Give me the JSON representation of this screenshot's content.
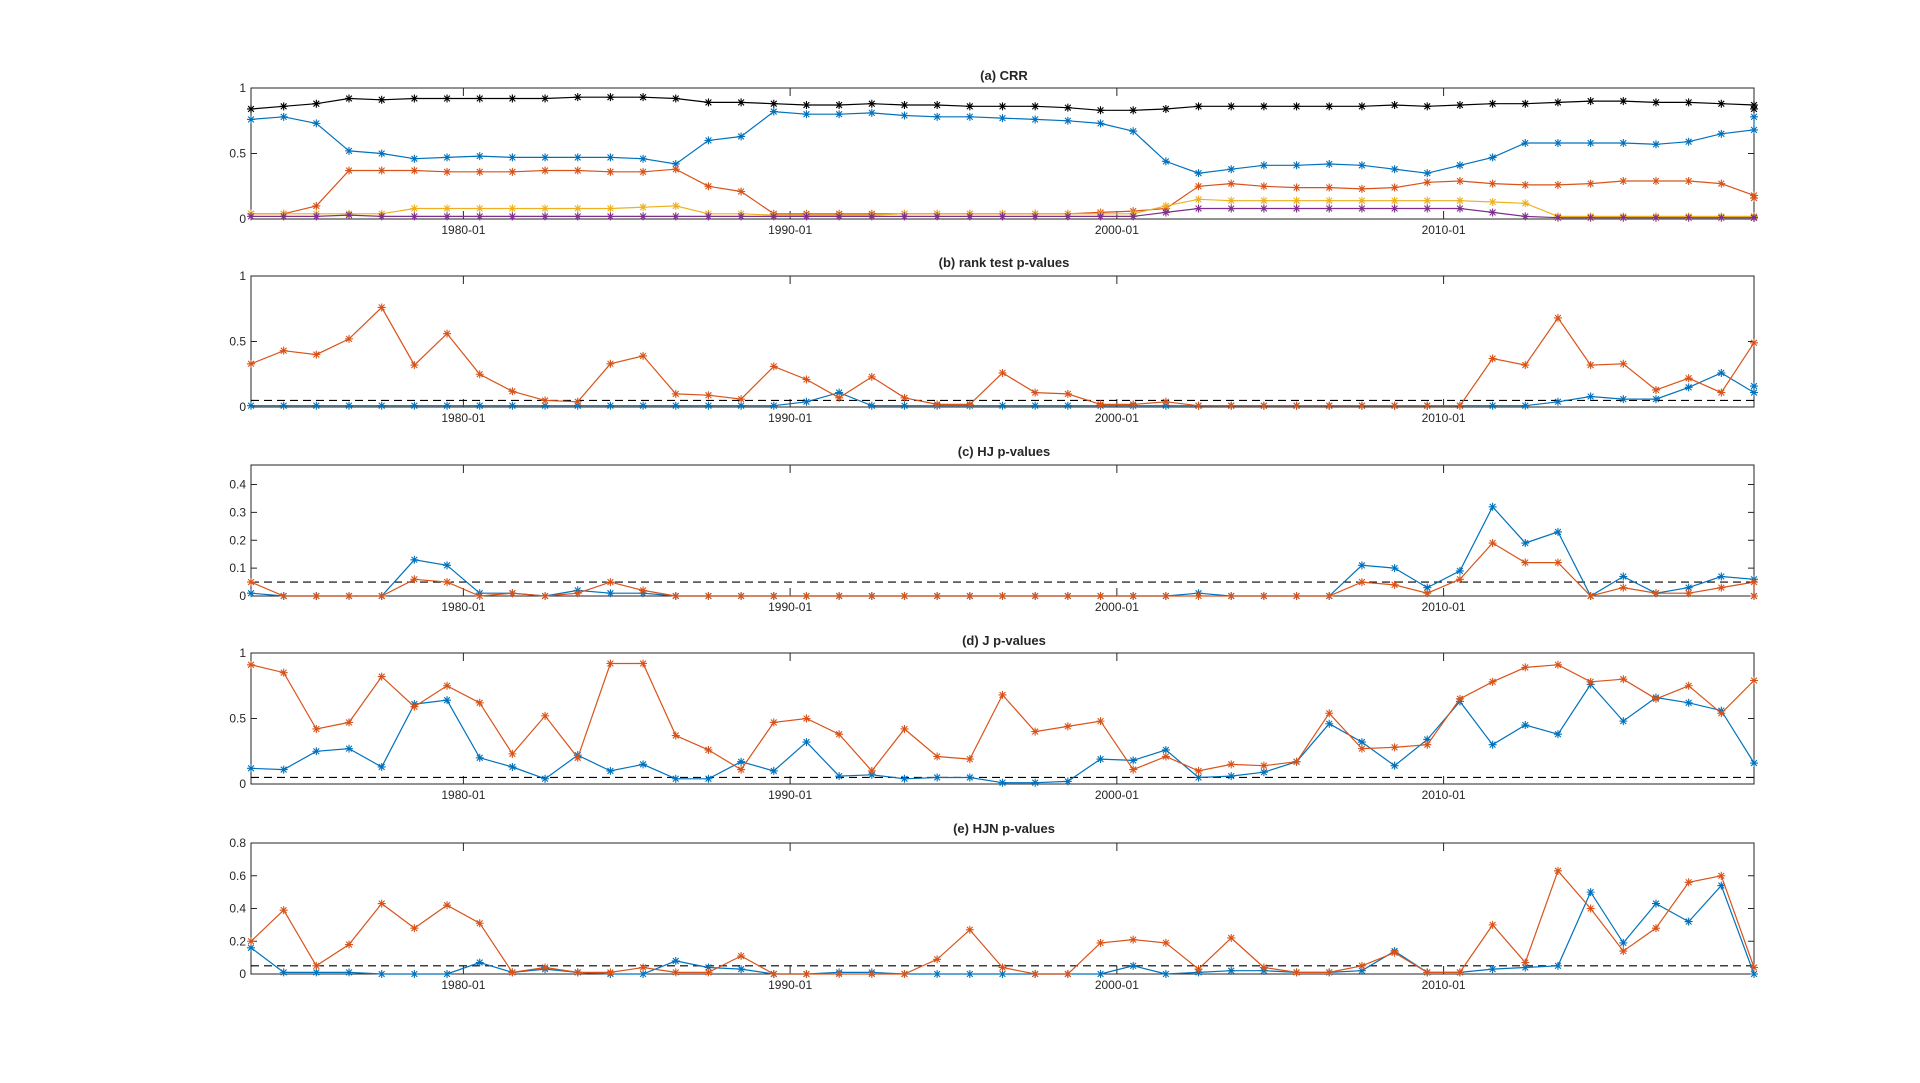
{
  "chart_data": [
    {
      "type": "line",
      "title": "(a) CRR",
      "x_start": 1973.0,
      "x_step": 1.0,
      "xlim": [
        1973.0,
        2019.0
      ],
      "x_ticks": [
        1979.5,
        1989.5,
        1999.5,
        2009.5
      ],
      "x_tick_labels": [
        "1980-01",
        "1990-01",
        "2000-01",
        "2010-01"
      ],
      "ylim": [
        0,
        1
      ],
      "y_ticks": [
        0,
        0.5,
        1
      ],
      "y_tick_labels": [
        "0",
        "0.5",
        "1"
      ],
      "reference_line": null,
      "series": [
        {
          "name": "series-1",
          "color": "#000000",
          "values": [
            0.84,
            0.86,
            0.88,
            0.92,
            0.91,
            0.92,
            0.92,
            0.92,
            0.92,
            0.92,
            0.93,
            0.93,
            0.93,
            0.92,
            0.89,
            0.89,
            0.88,
            0.87,
            0.87,
            0.88,
            0.87,
            0.87,
            0.86,
            0.86,
            0.86,
            0.85,
            0.83,
            0.83,
            0.84,
            0.86,
            0.86,
            0.86,
            0.86,
            0.86,
            0.86,
            0.87,
            0.86,
            0.87,
            0.88,
            0.88,
            0.89,
            0.9,
            0.9,
            0.89,
            0.89,
            0.88,
            0.87,
            0.84
          ]
        },
        {
          "name": "series-2",
          "color": "#0072BD",
          "values": [
            0.76,
            0.78,
            0.73,
            0.52,
            0.5,
            0.46,
            0.47,
            0.48,
            0.47,
            0.47,
            0.47,
            0.47,
            0.46,
            0.42,
            0.6,
            0.63,
            0.82,
            0.8,
            0.8,
            0.81,
            0.79,
            0.78,
            0.78,
            0.77,
            0.76,
            0.75,
            0.73,
            0.67,
            0.44,
            0.35,
            0.38,
            0.41,
            0.41,
            0.42,
            0.41,
            0.38,
            0.35,
            0.41,
            0.47,
            0.58,
            0.58,
            0.58,
            0.58,
            0.57,
            0.59,
            0.65,
            0.68,
            0.78
          ]
        },
        {
          "name": "series-3",
          "color": "#D95319",
          "values": [
            0.04,
            0.04,
            0.1,
            0.37,
            0.37,
            0.37,
            0.36,
            0.36,
            0.36,
            0.37,
            0.37,
            0.36,
            0.36,
            0.38,
            0.25,
            0.21,
            0.04,
            0.04,
            0.04,
            0.04,
            0.04,
            0.04,
            0.04,
            0.04,
            0.04,
            0.04,
            0.05,
            0.06,
            0.08,
            0.25,
            0.27,
            0.25,
            0.24,
            0.24,
            0.23,
            0.24,
            0.28,
            0.29,
            0.27,
            0.26,
            0.26,
            0.27,
            0.29,
            0.29,
            0.29,
            0.27,
            0.18,
            0.16
          ]
        },
        {
          "name": "series-4",
          "color": "#EDB120",
          "values": [
            0.04,
            0.04,
            0.04,
            0.04,
            0.04,
            0.08,
            0.08,
            0.08,
            0.08,
            0.08,
            0.08,
            0.08,
            0.09,
            0.1,
            0.04,
            0.04,
            0.03,
            0.03,
            0.03,
            0.03,
            0.04,
            0.04,
            0.04,
            0.04,
            0.04,
            0.04,
            0.04,
            0.04,
            0.1,
            0.15,
            0.14,
            0.14,
            0.14,
            0.14,
            0.14,
            0.14,
            0.14,
            0.14,
            0.13,
            0.12,
            0.02,
            0.02,
            0.02,
            0.02,
            0.02,
            0.02,
            0.02,
            0.02,
            0.02
          ]
        },
        {
          "name": "series-5",
          "color": "#7E2F8E",
          "values": [
            0.02,
            0.02,
            0.02,
            0.03,
            0.02,
            0.02,
            0.02,
            0.02,
            0.02,
            0.02,
            0.02,
            0.02,
            0.02,
            0.02,
            0.02,
            0.02,
            0.02,
            0.02,
            0.02,
            0.02,
            0.02,
            0.02,
            0.02,
            0.02,
            0.02,
            0.02,
            0.02,
            0.02,
            0.05,
            0.08,
            0.08,
            0.08,
            0.08,
            0.08,
            0.08,
            0.08,
            0.08,
            0.08,
            0.05,
            0.02,
            0.01,
            0.01,
            0.01,
            0.01,
            0.01,
            0.01,
            0.01,
            0.01,
            0.01
          ]
        }
      ]
    },
    {
      "type": "line",
      "title": "(b) rank test p-values",
      "x_start": 1973.0,
      "x_step": 1.0,
      "xlim": [
        1973.0,
        2019.0
      ],
      "x_ticks": [
        1979.5,
        1989.5,
        1999.5,
        2009.5
      ],
      "x_tick_labels": [
        "1980-01",
        "1990-01",
        "2000-01",
        "2010-01"
      ],
      "ylim": [
        0,
        1
      ],
      "y_ticks": [
        0,
        0.5,
        1
      ],
      "y_tick_labels": [
        "0",
        "0.5",
        "1"
      ],
      "reference_line": 0.05,
      "series": [
        {
          "name": "series-1",
          "color": "#0072BD",
          "values": [
            0.01,
            0.01,
            0.01,
            0.01,
            0.01,
            0.01,
            0.01,
            0.01,
            0.01,
            0.01,
            0.01,
            0.01,
            0.01,
            0.01,
            0.01,
            0.01,
            0.01,
            0.04,
            0.11,
            0.01,
            0.01,
            0.01,
            0.01,
            0.01,
            0.01,
            0.01,
            0.01,
            0.01,
            0.01,
            0.01,
            0.01,
            0.01,
            0.01,
            0.01,
            0.01,
            0.01,
            0.01,
            0.01,
            0.01,
            0.01,
            0.04,
            0.08,
            0.06,
            0.06,
            0.15,
            0.26,
            0.11,
            0.16
          ]
        },
        {
          "name": "series-2",
          "color": "#D95319",
          "values": [
            0.33,
            0.43,
            0.4,
            0.52,
            0.76,
            0.32,
            0.56,
            0.25,
            0.12,
            0.05,
            0.04,
            0.33,
            0.39,
            0.1,
            0.09,
            0.06,
            0.31,
            0.21,
            0.07,
            0.23,
            0.07,
            0.02,
            0.02,
            0.26,
            0.11,
            0.1,
            0.02,
            0.02,
            0.04,
            0.01,
            0.01,
            0.01,
            0.01,
            0.01,
            0.01,
            0.01,
            0.01,
            0.01,
            0.37,
            0.32,
            0.68,
            0.32,
            0.33,
            0.13,
            0.22,
            0.11,
            0.49
          ]
        }
      ]
    },
    {
      "type": "line",
      "title": "(c) HJ p-values",
      "x_start": 1973.0,
      "x_step": 1.0,
      "xlim": [
        1973.0,
        2019.0
      ],
      "x_ticks": [
        1979.5,
        1989.5,
        1999.5,
        2009.5
      ],
      "x_tick_labels": [
        "1980-01",
        "1990-01",
        "2000-01",
        "2010-01"
      ],
      "ylim": [
        0,
        0.47
      ],
      "y_ticks": [
        0,
        0.1,
        0.2,
        0.3,
        0.4
      ],
      "y_tick_labels": [
        "0",
        "0.1",
        "0.2",
        "0.3",
        "0.4"
      ],
      "reference_line": 0.05,
      "series": [
        {
          "name": "series-1",
          "color": "#0072BD",
          "values": [
            0.01,
            0.0,
            0.0,
            0.0,
            0.0,
            0.13,
            0.11,
            0.01,
            0.01,
            0.0,
            0.02,
            0.01,
            0.01,
            0.0,
            0.0,
            0.0,
            0.0,
            0.0,
            0.0,
            0.0,
            0.0,
            0.0,
            0.0,
            0.0,
            0.0,
            0.0,
            0.0,
            0.0,
            0.0,
            0.01,
            0.0,
            0.0,
            0.0,
            0.0,
            0.11,
            0.1,
            0.03,
            0.09,
            0.32,
            0.19,
            0.23,
            0.0,
            0.07,
            0.01,
            0.03,
            0.07,
            0.06,
            0.0
          ]
        },
        {
          "name": "series-2",
          "color": "#D95319",
          "values": [
            0.05,
            0.0,
            0.0,
            0.0,
            0.0,
            0.06,
            0.05,
            0.0,
            0.01,
            0.0,
            0.01,
            0.05,
            0.02,
            0.0,
            0.0,
            0.0,
            0.0,
            0.0,
            0.0,
            0.0,
            0.0,
            0.0,
            0.0,
            0.0,
            0.0,
            0.0,
            0.0,
            0.0,
            0.0,
            0.0,
            0.0,
            0.0,
            0.0,
            0.0,
            0.05,
            0.04,
            0.01,
            0.06,
            0.19,
            0.12,
            0.12,
            0.0,
            0.03,
            0.01,
            0.01,
            0.03,
            0.05,
            0.0
          ]
        }
      ]
    },
    {
      "type": "line",
      "title": "(d) J p-values",
      "x_start": 1973.0,
      "x_step": 1.0,
      "xlim": [
        1973.0,
        2019.0
      ],
      "x_ticks": [
        1979.5,
        1989.5,
        1999.5,
        2009.5
      ],
      "x_tick_labels": [
        "1980-01",
        "1990-01",
        "2000-01",
        "2010-01"
      ],
      "ylim": [
        0,
        1
      ],
      "y_ticks": [
        0,
        0.5,
        1
      ],
      "y_tick_labels": [
        "0",
        "0.5",
        "1"
      ],
      "reference_line": 0.05,
      "series": [
        {
          "name": "series-1",
          "color": "#0072BD",
          "values": [
            0.12,
            0.11,
            0.25,
            0.27,
            0.13,
            0.61,
            0.64,
            0.2,
            0.13,
            0.04,
            0.22,
            0.1,
            0.15,
            0.04,
            0.04,
            0.17,
            0.1,
            0.32,
            0.06,
            0.07,
            0.04,
            0.05,
            0.05,
            0.01,
            0.01,
            0.02,
            0.19,
            0.18,
            0.26,
            0.05,
            0.06,
            0.09,
            0.17,
            0.46,
            0.32,
            0.14,
            0.34,
            0.63,
            0.3,
            0.45,
            0.38,
            0.76,
            0.48,
            0.66,
            0.62,
            0.56,
            0.16
          ]
        },
        {
          "name": "series-2",
          "color": "#D95319",
          "values": [
            0.91,
            0.85,
            0.42,
            0.47,
            0.82,
            0.59,
            0.75,
            0.62,
            0.23,
            0.52,
            0.2,
            0.92,
            0.92,
            0.37,
            0.26,
            0.11,
            0.47,
            0.5,
            0.38,
            0.1,
            0.42,
            0.21,
            0.19,
            0.68,
            0.4,
            0.44,
            0.48,
            0.11,
            0.21,
            0.1,
            0.15,
            0.14,
            0.17,
            0.54,
            0.27,
            0.28,
            0.3,
            0.65,
            0.78,
            0.89,
            0.91,
            0.78,
            0.8,
            0.65,
            0.75,
            0.54,
            0.79
          ]
        }
      ]
    },
    {
      "type": "line",
      "title": "(e) HJN p-values",
      "x_start": 1973.0,
      "x_step": 1.0,
      "xlim": [
        1973.0,
        2019.0
      ],
      "x_ticks": [
        1979.5,
        1989.5,
        1999.5,
        2009.5
      ],
      "x_tick_labels": [
        "1980-01",
        "1990-01",
        "2000-01",
        "2010-01"
      ],
      "ylim": [
        0,
        0.8
      ],
      "y_ticks": [
        0,
        0.2,
        0.4,
        0.6,
        0.8
      ],
      "y_tick_labels": [
        "0",
        "0.2",
        "0.4",
        "0.6",
        "0.8"
      ],
      "reference_line": 0.05,
      "series": [
        {
          "name": "series-1",
          "color": "#0072BD",
          "values": [
            0.16,
            0.01,
            0.01,
            0.01,
            0.0,
            0.0,
            0.0,
            0.07,
            0.01,
            0.03,
            0.01,
            0.0,
            0.0,
            0.08,
            0.04,
            0.03,
            0.0,
            0.0,
            0.01,
            0.01,
            0.0,
            0.0,
            0.0,
            0.0,
            0.0,
            0.0,
            0.0,
            0.05,
            0.0,
            0.01,
            0.02,
            0.02,
            0.01,
            0.01,
            0.02,
            0.14,
            0.01,
            0.01,
            0.03,
            0.04,
            0.05,
            0.5,
            0.19,
            0.43,
            0.32,
            0.54,
            0.0
          ]
        },
        {
          "name": "series-2",
          "color": "#D95319",
          "values": [
            0.2,
            0.39,
            0.05,
            0.18,
            0.43,
            0.28,
            0.42,
            0.31,
            0.01,
            0.04,
            0.01,
            0.01,
            0.04,
            0.01,
            0.01,
            0.11,
            0.0,
            0.0,
            0.0,
            0.0,
            0.0,
            0.09,
            0.27,
            0.04,
            0.0,
            0.0,
            0.19,
            0.21,
            0.19,
            0.03,
            0.22,
            0.04,
            0.01,
            0.01,
            0.05,
            0.13,
            0.01,
            0.01,
            0.3,
            0.07,
            0.63,
            0.4,
            0.14,
            0.28,
            0.56,
            0.6,
            0.04
          ]
        }
      ]
    }
  ]
}
